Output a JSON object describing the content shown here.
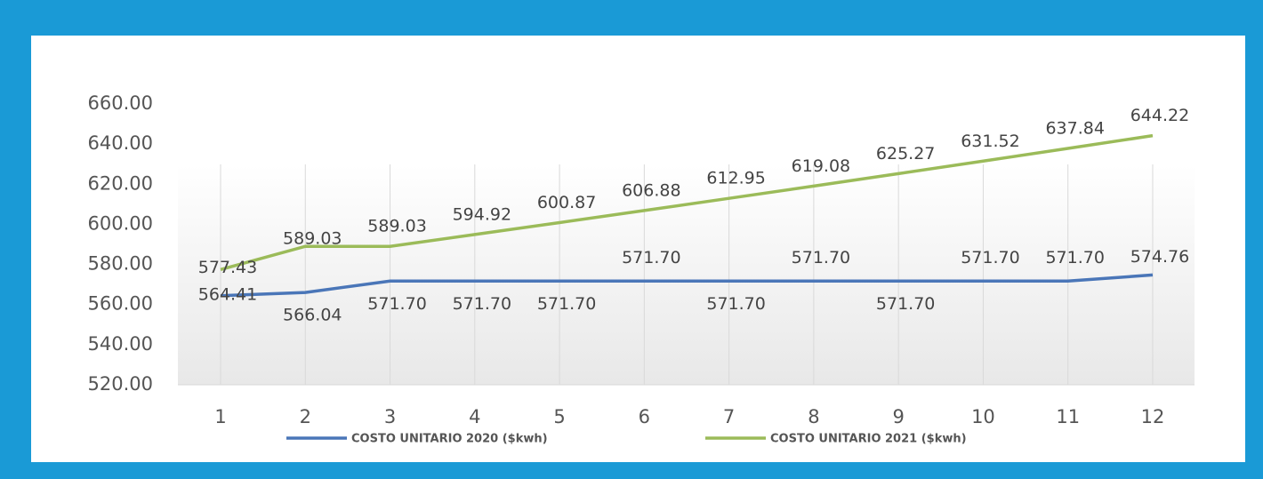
{
  "chart_data": {
    "type": "line",
    "categories": [
      "1",
      "2",
      "3",
      "4",
      "5",
      "6",
      "7",
      "8",
      "9",
      "10",
      "11",
      "12"
    ],
    "series": [
      {
        "name": "COSTO UNITARIO 2020 ($kwh)",
        "color": "#4a76b8",
        "values": [
          564.41,
          566.04,
          571.7,
          571.7,
          571.7,
          571.7,
          571.7,
          571.7,
          571.7,
          571.7,
          571.7,
          574.76
        ],
        "value_labels": [
          "564.41",
          "566.04",
          "571.70",
          "571.70",
          "571.70",
          "571.70",
          "571.70",
          "571.70",
          "571.70",
          "571.70",
          "571.70",
          "574.76"
        ]
      },
      {
        "name": "COSTO UNITARIO 2021 ($kwh)",
        "color": "#9bbb59",
        "values": [
          577.43,
          589.03,
          589.03,
          594.92,
          600.87,
          606.88,
          612.95,
          619.08,
          625.27,
          631.52,
          637.84,
          644.22
        ],
        "value_labels": [
          "577.43",
          "589.03",
          "589.03",
          "594.92",
          "600.87",
          "606.88",
          "612.95",
          "619.08",
          "625.27",
          "631.52",
          "637.84",
          "644.22"
        ]
      }
    ],
    "ylim": [
      520,
      660
    ],
    "yticks": [
      {
        "value": 520,
        "label": "520.00"
      },
      {
        "value": 540,
        "label": "540.00"
      },
      {
        "value": 560,
        "label": "560.00"
      },
      {
        "value": 580,
        "label": "580.00"
      },
      {
        "value": 600,
        "label": "600.00"
      },
      {
        "value": 620,
        "label": "620.00"
      },
      {
        "value": 640,
        "label": "640.00"
      },
      {
        "value": 660,
        "label": "660.00"
      }
    ],
    "grid": true,
    "legend": "bottom"
  }
}
